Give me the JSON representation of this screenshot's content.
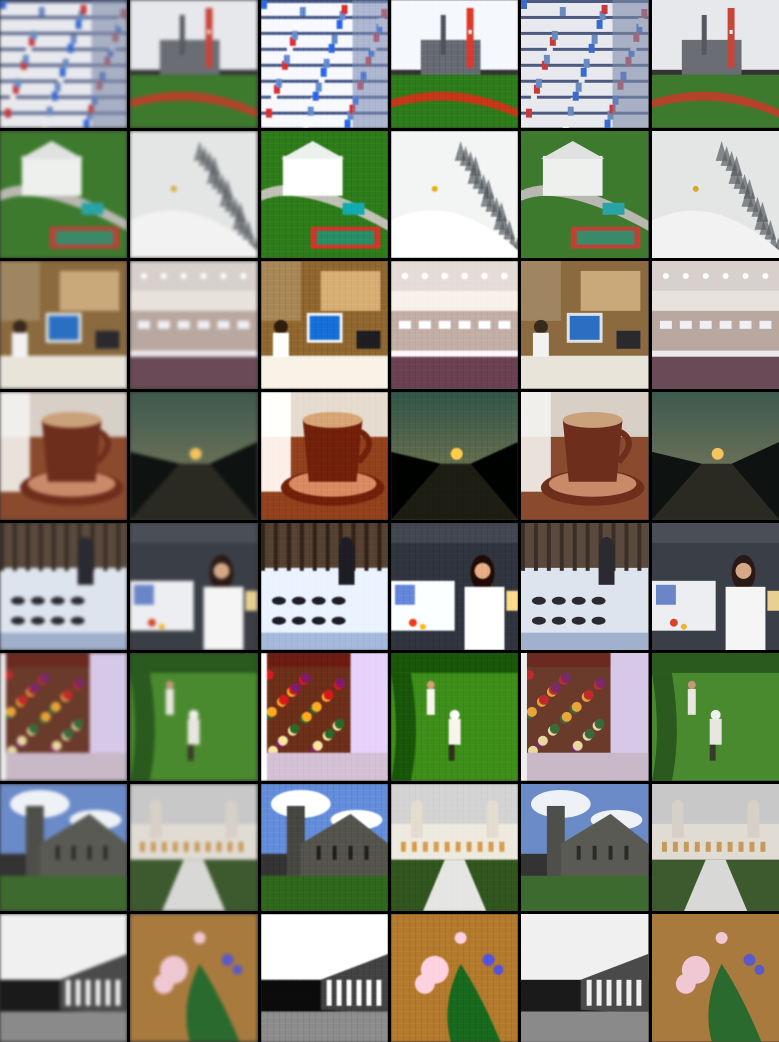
{
  "grid": {
    "rows": 8,
    "cols": 6
  },
  "column_variants": [
    "low-resolution",
    "low-resolution",
    "reconstructed",
    "reconstructed",
    "ground-truth",
    "ground-truth"
  ],
  "rows": [
    {
      "pair": [
        "pharmacy-shelves",
        "power-plant-ballfield"
      ]
    },
    {
      "pair": [
        "white-mansion-tennis",
        "snowy-ski-slope"
      ]
    },
    {
      "pair": [
        "office-computer-desk",
        "conference-hall"
      ]
    },
    {
      "pair": [
        "latte-cup",
        "sunset-valley"
      ]
    },
    {
      "pair": [
        "sled-dog-team",
        "woman-printer-lab"
      ]
    },
    {
      "pair": [
        "market-stall",
        "lawn-gardeners"
      ]
    },
    {
      "pair": [
        "stone-church",
        "palace-courtyard"
      ]
    },
    {
      "pair": [
        "bw-arcade-building",
        "pink-flowers"
      ]
    }
  ],
  "colors": {
    "pharmacy-shelves": [
      "#7d8aa8",
      "#e8e9ef",
      "#4c5a80"
    ],
    "power-plant-ballfield": [
      "#c8ccd2",
      "#6a6e74",
      "#3d7a2e",
      "#b3432a"
    ],
    "white-mansion-tennis": [
      "#3d7a2e",
      "#eef0ee",
      "#c04036",
      "#2aa3a6"
    ],
    "snowy-ski-slope": [
      "#e4e6e6",
      "#9ea3a6",
      "#5a5e62"
    ],
    "office-computer-desk": [
      "#8a6a3e",
      "#c9a87a",
      "#2a6fc2",
      "#e8e4da"
    ],
    "conference-hall": [
      "#b8a8a0",
      "#e8e2dc",
      "#4a3a3c",
      "#6a4a56"
    ],
    "latte-cup": [
      "#6e2e1c",
      "#c9a17a",
      "#f4f2ee",
      "#3a1a10"
    ],
    "sunset-valley": [
      "#3d5a4e",
      "#1d2620",
      "#f5c45a",
      "#0e1210"
    ],
    "sled-dog-team": [
      "#5a4a3e",
      "#dde4ee",
      "#2a2a30",
      "#7a8fb8"
    ],
    "woman-printer-lab": [
      "#3a3e46",
      "#eceef2",
      "#6a86c8",
      "#d9442a"
    ],
    "market-stall": [
      "#6a3a2a",
      "#d8c8e8",
      "#c02a2a",
      "#e8a63a"
    ],
    "lawn-gardeners": [
      "#4a8a2e",
      "#2a5a1e",
      "#e8e6e0",
      "#6a9a3e"
    ],
    "stone-church": [
      "#6a8ac8",
      "#eef2f6",
      "#4e4e4a",
      "#3d6a2e"
    ],
    "palace-courtyard": [
      "#c8c8c8",
      "#e0dcd4",
      "#3d5a2e",
      "#c89a5a"
    ],
    "bw-arcade-building": [
      "#f0f0f0",
      "#1a1a1a",
      "#8a8a8a",
      "#4a4a4a"
    ],
    "pink-flowers": [
      "#a87a3e",
      "#f0c8d4",
      "#2a6a2e",
      "#5a5ac8"
    ]
  }
}
